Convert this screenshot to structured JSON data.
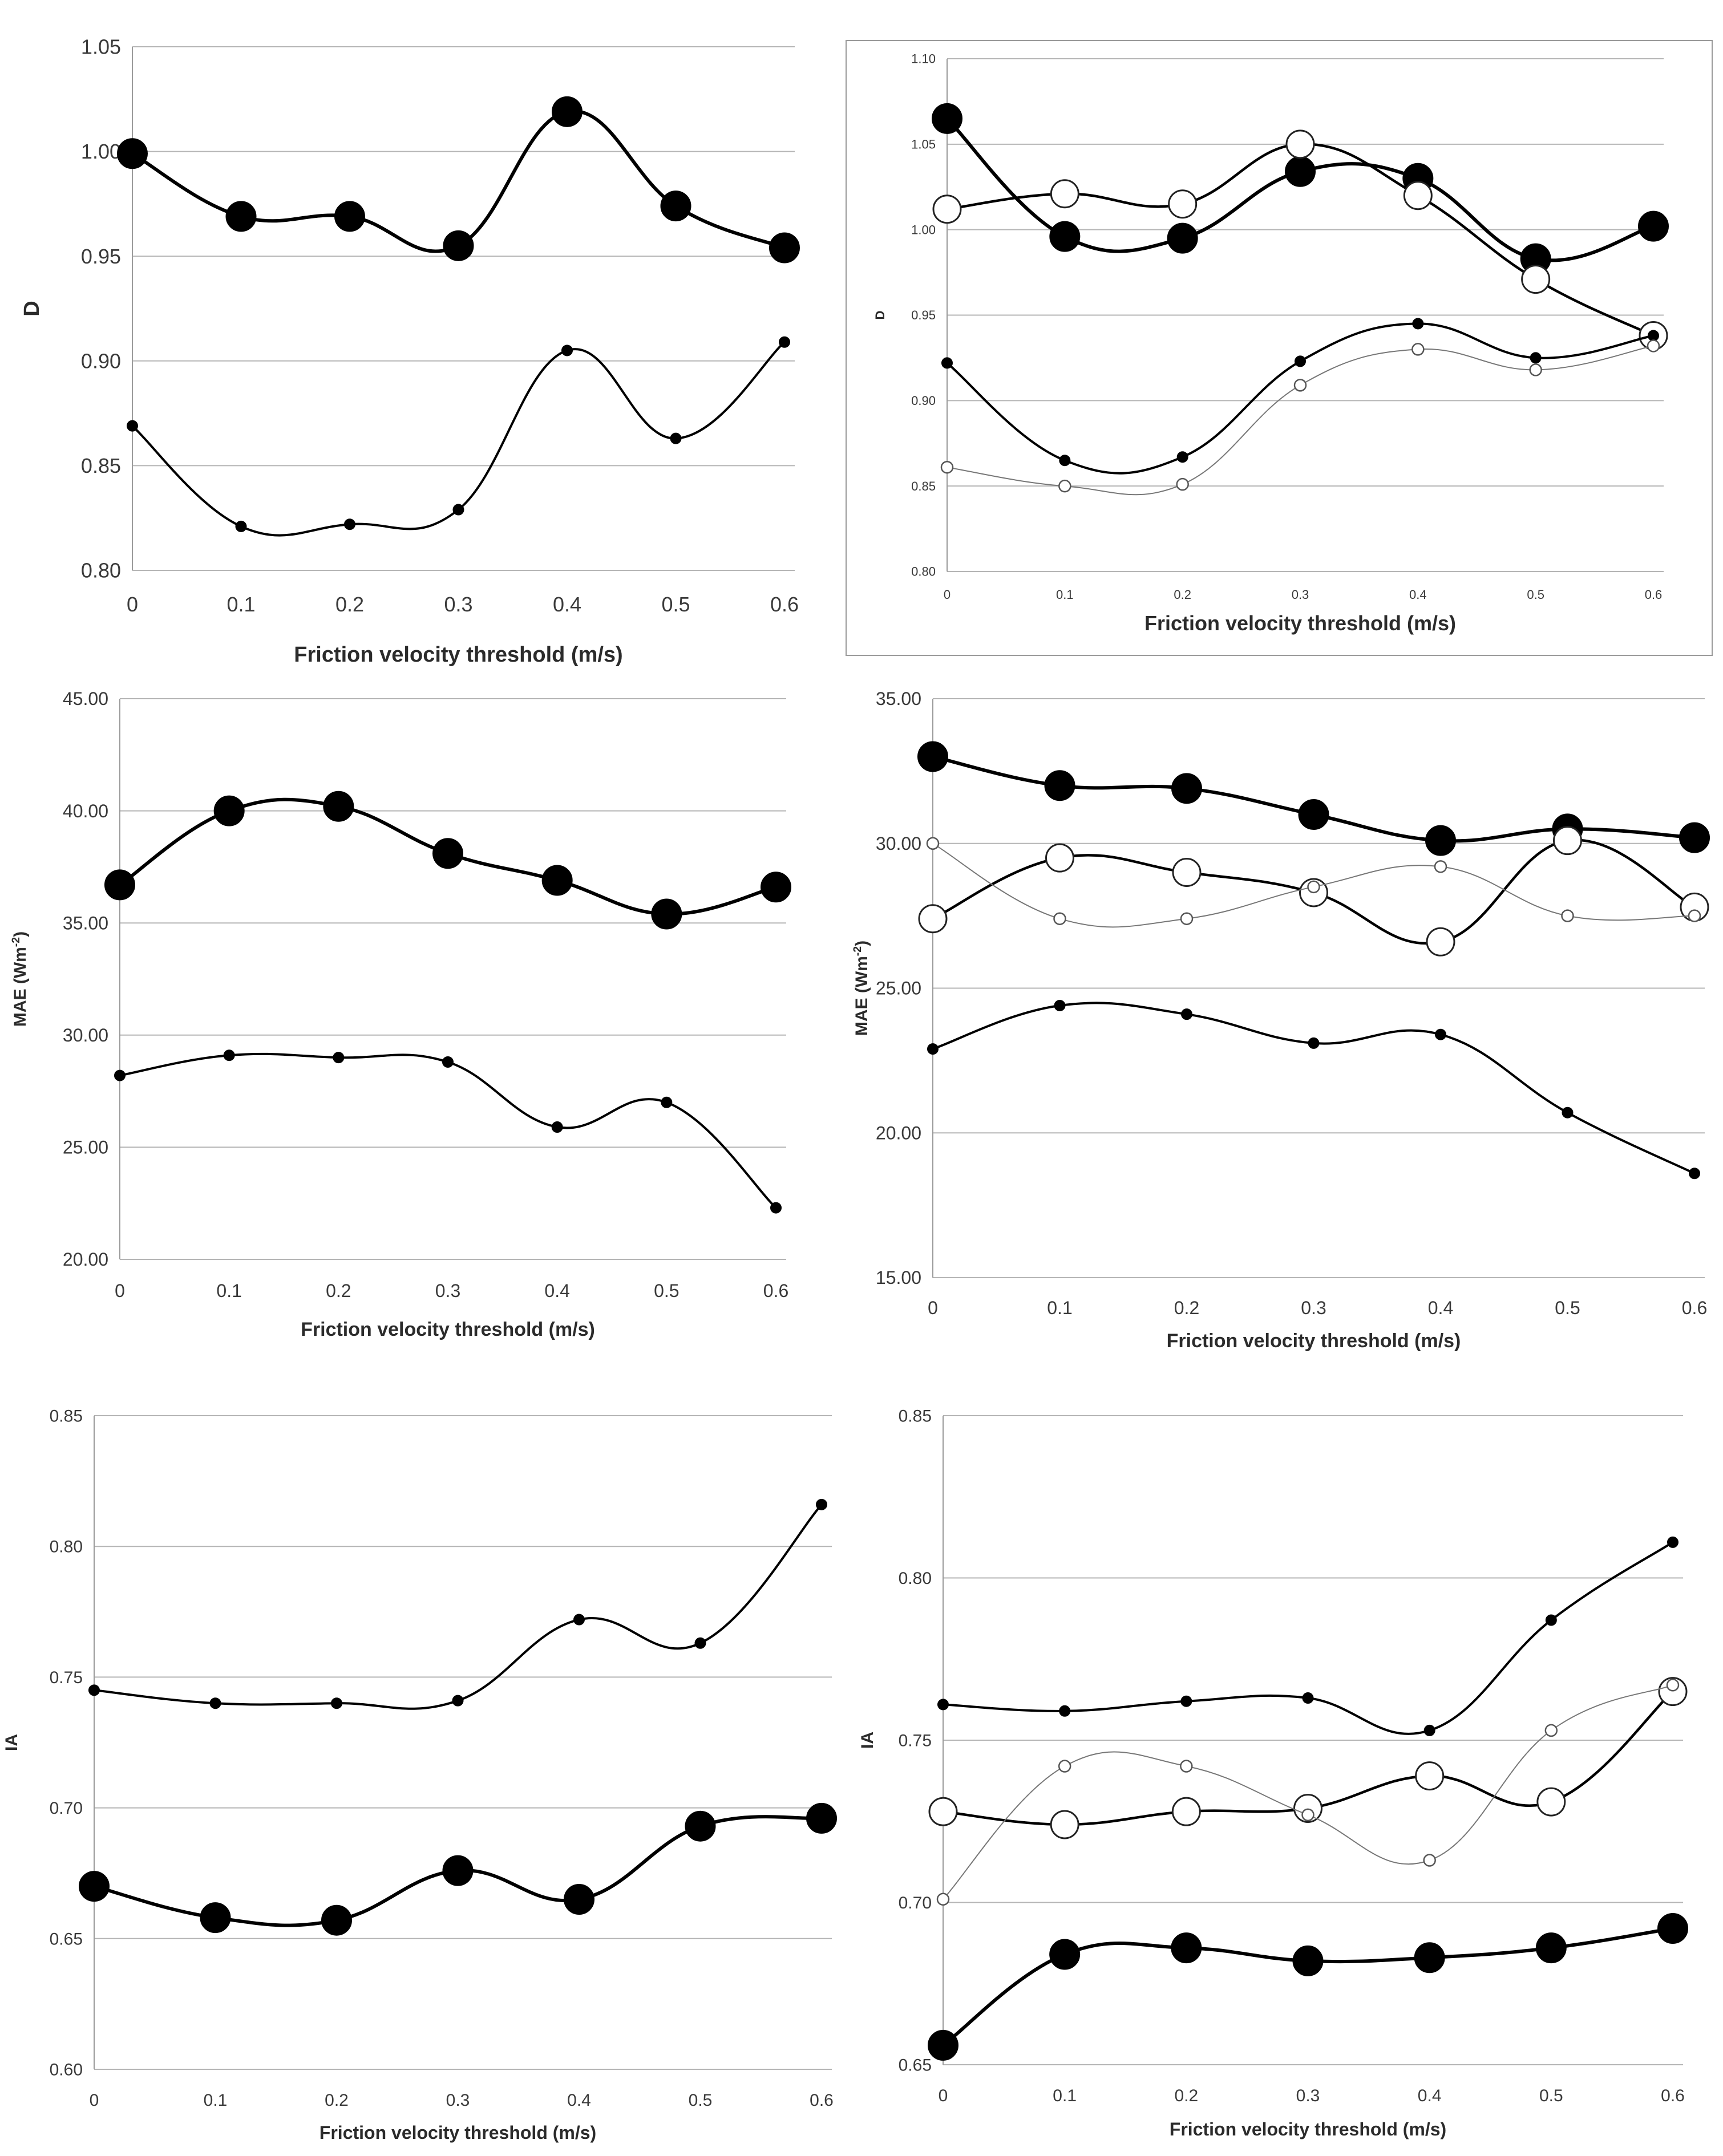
{
  "charts": [
    {
      "type": "line",
      "xlabel": "Friction velocity threshold (m/s)",
      "ylabel": "D",
      "ylabel_sup": "",
      "categories": [
        "0",
        "0.1",
        "0.2",
        "0.3",
        "0.4",
        "0.5",
        "0.6"
      ],
      "ylim": [
        0.8,
        1.05
      ],
      "yticks": [
        "0.80",
        "0.85",
        "0.90",
        "0.95",
        "1.00",
        "1.05"
      ],
      "series": [
        {
          "name": "series-large-filled",
          "marker": "large-filled",
          "values": [
            0.999,
            0.969,
            0.969,
            0.955,
            1.019,
            0.974,
            0.954
          ]
        },
        {
          "name": "series-small-filled",
          "marker": "small-filled",
          "values": [
            0.869,
            0.821,
            0.822,
            0.829,
            0.905,
            0.863,
            0.909
          ]
        }
      ]
    },
    {
      "type": "line",
      "xlabel": "Friction velocity threshold (m/s)",
      "ylabel": "D",
      "ylabel_sup": "",
      "categories": [
        "0",
        "0.1",
        "0.2",
        "0.3",
        "0.4",
        "0.5",
        "0.6"
      ],
      "ylim": [
        0.8,
        1.1
      ],
      "yticks": [
        "0.80",
        "0.85",
        "0.90",
        "0.95",
        "1.00",
        "1.05",
        "1.10"
      ],
      "series": [
        {
          "name": "series-large-filled",
          "marker": "large-filled",
          "values": [
            1.065,
            0.996,
            0.995,
            1.034,
            1.03,
            0.983,
            1.002
          ]
        },
        {
          "name": "series-large-open",
          "marker": "large-open",
          "values": [
            1.012,
            1.021,
            1.015,
            1.05,
            1.02,
            0.971,
            0.938
          ]
        },
        {
          "name": "series-small-filled",
          "marker": "small-filled",
          "values": [
            0.922,
            0.865,
            0.867,
            0.923,
            0.945,
            0.925,
            0.938
          ]
        },
        {
          "name": "series-small-open",
          "marker": "small-open",
          "values": [
            0.861,
            0.85,
            0.851,
            0.909,
            0.93,
            0.918,
            0.932
          ]
        }
      ]
    },
    {
      "type": "line",
      "xlabel": "Friction velocity threshold (m/s)",
      "ylabel": "MAE (Wm",
      "ylabel_sup": "-2",
      "ylabel_end": ")",
      "categories": [
        "0",
        "0.1",
        "0.2",
        "0.3",
        "0.4",
        "0.5",
        "0.6"
      ],
      "ylim": [
        20,
        45
      ],
      "yticks": [
        "20.00",
        "25.00",
        "30.00",
        "35.00",
        "40.00",
        "45.00"
      ],
      "series": [
        {
          "name": "series-large-filled",
          "marker": "large-filled",
          "values": [
            36.7,
            40.0,
            40.2,
            38.1,
            36.9,
            35.4,
            36.6
          ]
        },
        {
          "name": "series-small-filled",
          "marker": "small-filled",
          "values": [
            28.2,
            29.1,
            29.0,
            28.8,
            25.9,
            27.0,
            22.3
          ]
        }
      ]
    },
    {
      "type": "line",
      "xlabel": "Friction velocity threshold (m/s)",
      "ylabel": "MAE (Wm",
      "ylabel_sup": "-2",
      "ylabel_end": ")",
      "categories": [
        "0",
        "0.1",
        "0.2",
        "0.3",
        "0.4",
        "0.5",
        "0.6"
      ],
      "ylim": [
        15,
        35
      ],
      "yticks": [
        "15.00",
        "20.00",
        "25.00",
        "30.00",
        "35.00"
      ],
      "series": [
        {
          "name": "series-large-filled",
          "marker": "large-filled",
          "values": [
            33.0,
            32.0,
            31.9,
            31.0,
            30.1,
            30.5,
            30.2
          ]
        },
        {
          "name": "series-large-open",
          "marker": "large-open",
          "values": [
            27.4,
            29.5,
            29.0,
            28.3,
            26.6,
            30.1,
            27.8
          ]
        },
        {
          "name": "series-small-open",
          "marker": "small-open",
          "values": [
            30.0,
            27.4,
            27.4,
            28.5,
            29.2,
            27.5,
            27.5
          ]
        },
        {
          "name": "series-small-filled",
          "marker": "small-filled",
          "values": [
            22.9,
            24.4,
            24.1,
            23.1,
            23.4,
            20.7,
            18.6
          ]
        }
      ]
    },
    {
      "type": "line",
      "xlabel": "Friction velocity threshold (m/s)",
      "ylabel": "IA",
      "ylabel_sup": "",
      "categories": [
        "0",
        "0.1",
        "0.2",
        "0.3",
        "0.4",
        "0.5",
        "0.6"
      ],
      "ylim": [
        0.6,
        0.85
      ],
      "yticks": [
        "0.60",
        "0.65",
        "0.70",
        "0.75",
        "0.80",
        "0.85"
      ],
      "series": [
        {
          "name": "series-small-filled",
          "marker": "small-filled",
          "values": [
            0.745,
            0.74,
            0.74,
            0.741,
            0.772,
            0.763,
            0.816
          ]
        },
        {
          "name": "series-large-filled",
          "marker": "large-filled",
          "values": [
            0.67,
            0.658,
            0.657,
            0.676,
            0.665,
            0.693,
            0.696
          ]
        }
      ]
    },
    {
      "type": "line",
      "xlabel": "Friction velocity threshold (m/s)",
      "ylabel": "IA",
      "ylabel_sup": "",
      "categories": [
        "0",
        "0.1",
        "0.2",
        "0.3",
        "0.4",
        "0.5",
        "0.6"
      ],
      "ylim": [
        0.65,
        0.85
      ],
      "yticks": [
        "0.65",
        "0.70",
        "0.75",
        "0.80",
        "0.85"
      ],
      "series": [
        {
          "name": "series-small-filled",
          "marker": "small-filled",
          "values": [
            0.761,
            0.759,
            0.762,
            0.763,
            0.753,
            0.787,
            0.811
          ]
        },
        {
          "name": "series-large-open",
          "marker": "large-open",
          "values": [
            0.728,
            0.724,
            0.728,
            0.729,
            0.739,
            0.731,
            0.765
          ]
        },
        {
          "name": "series-small-open",
          "marker": "small-open",
          "values": [
            0.701,
            0.742,
            0.742,
            0.727,
            0.713,
            0.753,
            0.767
          ]
        },
        {
          "name": "series-large-filled",
          "marker": "large-filled",
          "values": [
            0.656,
            0.684,
            0.686,
            0.682,
            0.683,
            0.686,
            0.692
          ]
        }
      ]
    }
  ]
}
